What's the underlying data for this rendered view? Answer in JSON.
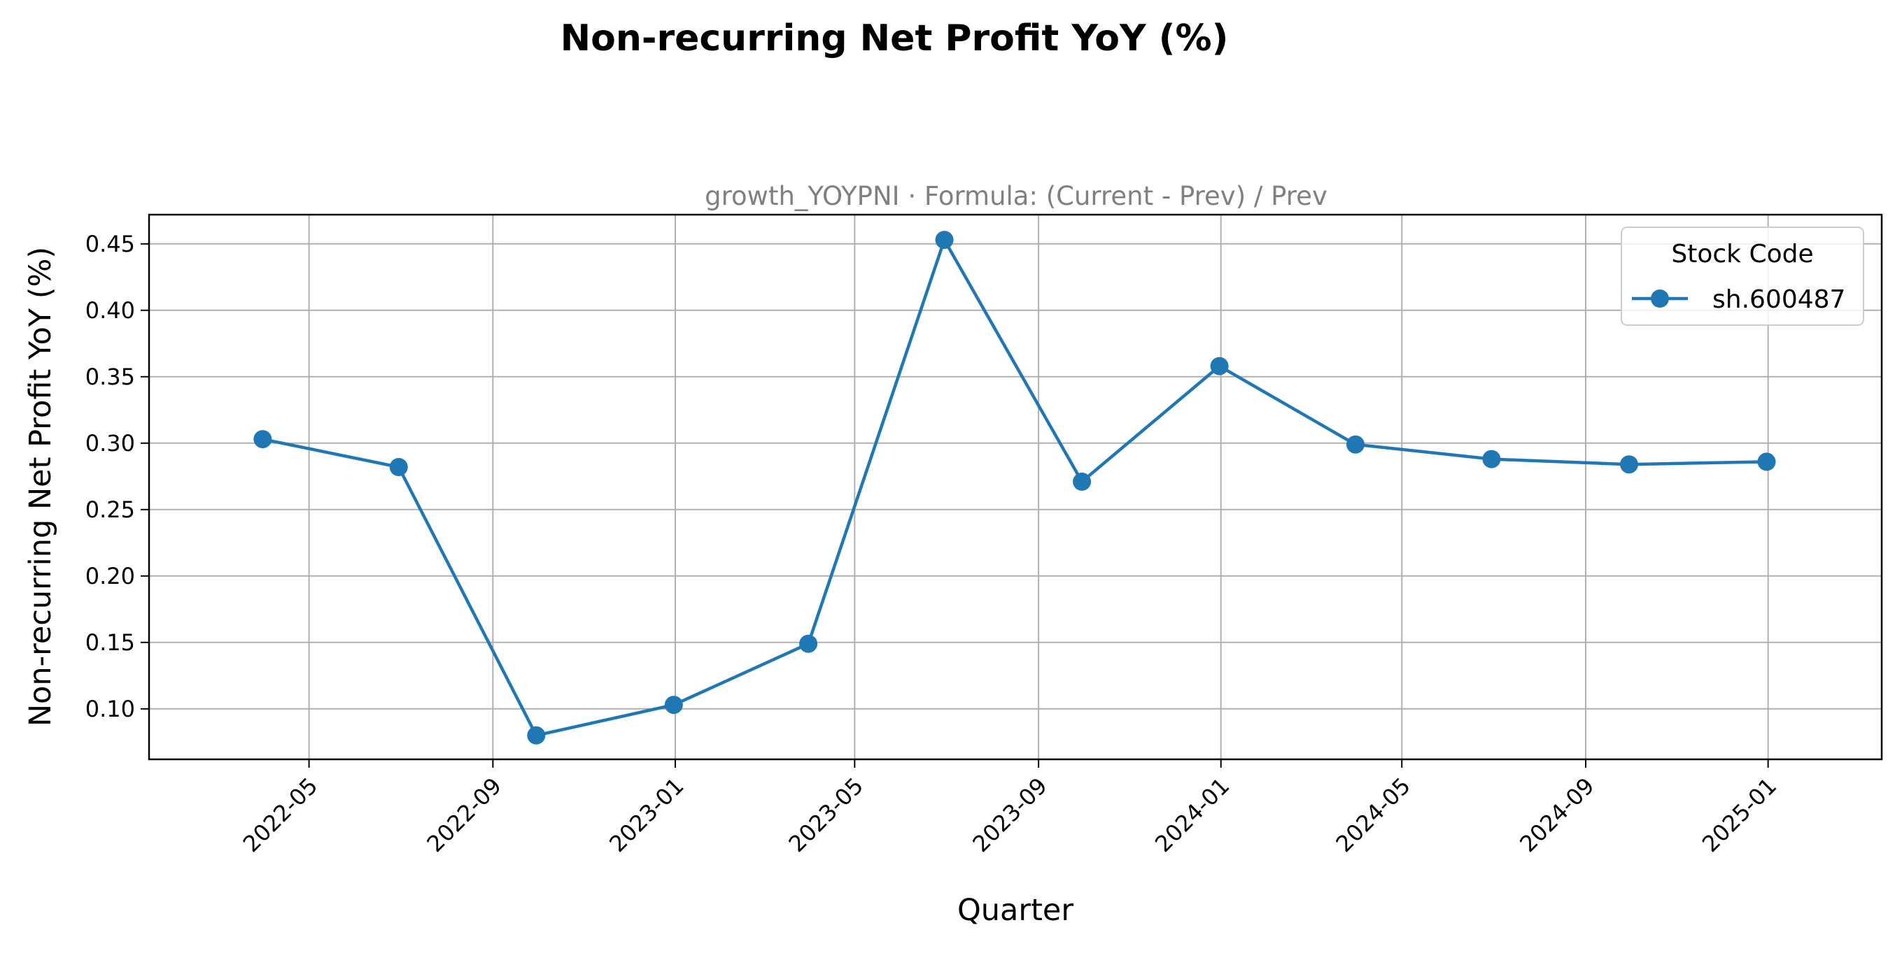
{
  "chart_data": {
    "type": "line",
    "title": "Non-recurring Net Profit YoY (%)",
    "subtitle": "growth_YOYPNI · Formula: (Current - Prev) / Prev",
    "xlabel": "Quarter",
    "ylabel": "Non-recurring Net Profit YoY (%)",
    "x_ticks": [
      "2022-05",
      "2022-09",
      "2023-01",
      "2023-05",
      "2023-09",
      "2024-01",
      "2024-05",
      "2024-09",
      "2025-01"
    ],
    "y_ticks": [
      "0.10",
      "0.15",
      "0.20",
      "0.25",
      "0.30",
      "0.35",
      "0.40",
      "0.45"
    ],
    "xlim": [
      "2022-01-14",
      "2025-03-18"
    ],
    "ylim": [
      0.062,
      0.472
    ],
    "grid": true,
    "legend": {
      "title": "Stock Code",
      "position": "top-right"
    },
    "series": [
      {
        "name": "sh.600487",
        "color": "#1f77b4",
        "x": [
          "2022-03-31",
          "2022-06-30",
          "2022-09-30",
          "2022-12-31",
          "2023-03-31",
          "2023-06-30",
          "2023-09-30",
          "2023-12-31",
          "2024-03-31",
          "2024-06-30",
          "2024-09-30",
          "2024-12-31"
        ],
        "values": [
          0.303,
          0.282,
          0.08,
          0.103,
          0.149,
          0.453,
          0.271,
          0.358,
          0.299,
          0.288,
          0.284,
          0.286
        ]
      }
    ]
  }
}
